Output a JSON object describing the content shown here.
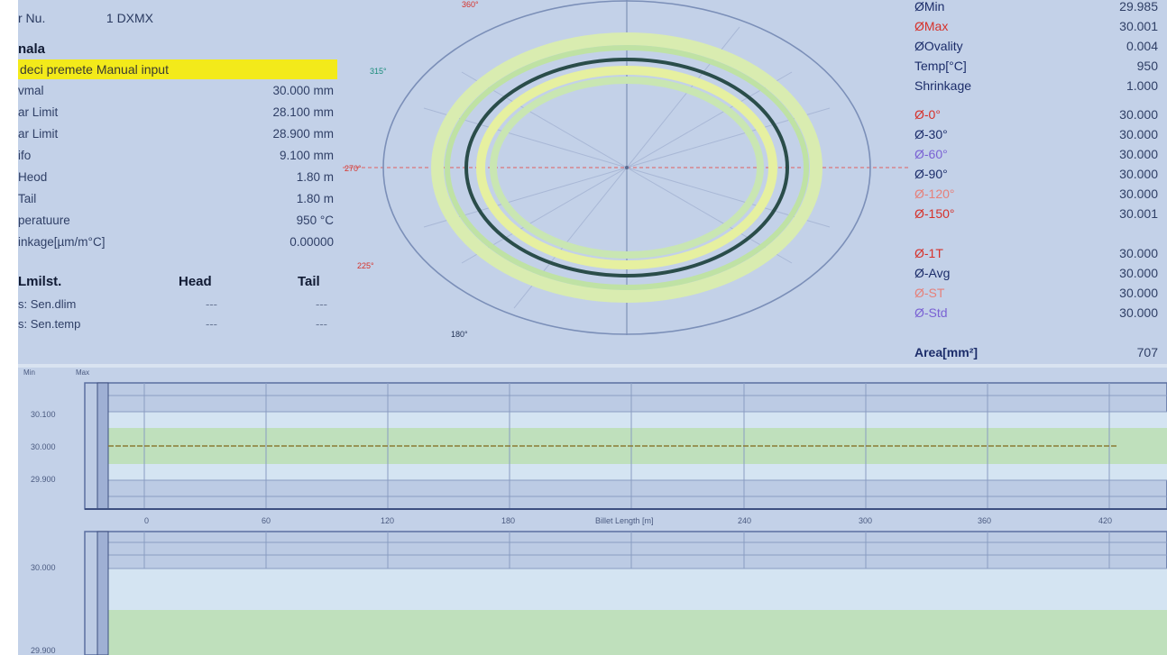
{
  "left_panel": {
    "nr_label": "r Nu.",
    "nr_value": "1 DXMX",
    "section_title": "nala",
    "preset_highlight": "deci premete Manual input",
    "params": [
      {
        "label": "vmal",
        "value": "30.000 mm"
      },
      {
        "label": "ar Limit",
        "value": "28.100 mm"
      },
      {
        "label": "ar Limit",
        "value": "28.900 mm"
      },
      {
        "label": "ifo",
        "value": "9.100 mm"
      },
      {
        "label": "Heod",
        "value": "1.80 m"
      },
      {
        "label": "Tail",
        "value": "1.80 m"
      },
      {
        "label": "peratuure",
        "value": "950 °C"
      },
      {
        "label": "inkage[µm/m°C]",
        "value": "0.00000"
      }
    ],
    "limits": {
      "header": {
        "c1": "Lmilst.",
        "c2": "Head",
        "c3": "Tail"
      },
      "rows": [
        {
          "c1": "s: Sen.dlim",
          "c2": "---",
          "c3": "---"
        },
        {
          "c1": "s: Sen.temp",
          "c2": "---",
          "c3": "---"
        }
      ]
    }
  },
  "polar": {
    "labels": {
      "top": "360°",
      "left_upper": "315°",
      "left": "270°",
      "left_lower": "225°",
      "bottom": "180°"
    },
    "rings": [
      {
        "role": "outer-reference",
        "color": "#7b8fb8"
      },
      {
        "role": "upper-tolerance-band",
        "color": "#d9ecb0"
      },
      {
        "role": "measured-profile",
        "color": "#2a4d4a"
      },
      {
        "role": "lower-tolerance-band",
        "color": "#e6f0a0"
      }
    ]
  },
  "right_panel": {
    "rows": [
      {
        "label": "ØMin",
        "value": "29.985",
        "color": "blue"
      },
      {
        "label": "ØMax",
        "value": "30.001",
        "color": "red"
      },
      {
        "label": "ØOvality",
        "value": "0.004",
        "color": "blue"
      },
      {
        "label": "Temp[°C]",
        "value": "950",
        "color": "blue"
      },
      {
        "label": "Shrinkage",
        "value": "1.000",
        "color": "blue"
      }
    ],
    "angle_rows": [
      {
        "label": "Ø-0°",
        "value": "30.000",
        "color": "red"
      },
      {
        "label": "Ø-30°",
        "value": "30.000",
        "color": "blue"
      },
      {
        "label": "Ø-60°",
        "value": "30.000",
        "color": "purple"
      },
      {
        "label": "Ø-90°",
        "value": "30.000",
        "color": "blue"
      },
      {
        "label": "Ø-120°",
        "value": "30.000",
        "color": "pink"
      },
      {
        "label": "Ø-150°",
        "value": "30.001",
        "color": "red"
      }
    ],
    "extra_rows": [
      {
        "label": "Ø-1T",
        "value": "30.000",
        "color": "red"
      },
      {
        "label": "Ø-Avg",
        "value": "30.000",
        "color": "blue"
      },
      {
        "label": "Ø-ST",
        "value": "30.000",
        "color": "pink"
      },
      {
        "label": "Ø-Std",
        "value": "30.000",
        "color": "purple"
      }
    ],
    "area": {
      "label": "Area[mm²]",
      "value": "707"
    }
  },
  "charts": {
    "legend_small": [
      "Min",
      "Max"
    ],
    "upper": {
      "y_ticks": [
        "30.100",
        "30.000",
        "29.900"
      ],
      "x_ticks": [
        "0",
        "60",
        "120",
        "180",
        "",
        "240",
        "300",
        "360",
        "420"
      ],
      "x_title": "Billet Length [m]"
    },
    "lower": {
      "y_ticks": [
        "30.000",
        "29.900"
      ]
    }
  }
}
